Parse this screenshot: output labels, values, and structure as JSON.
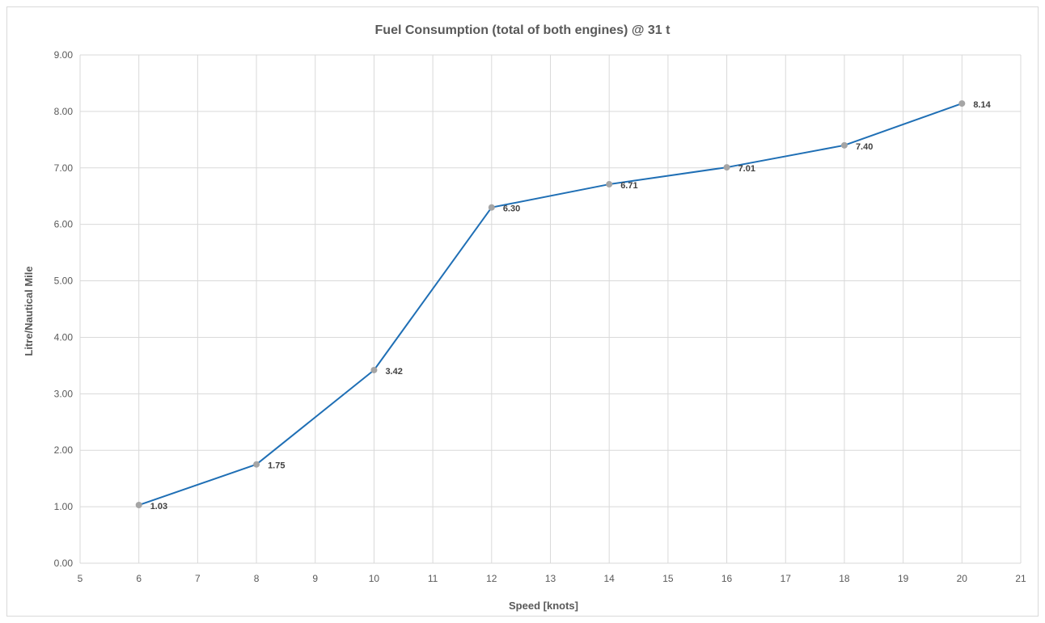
{
  "chart_data": {
    "type": "scatter",
    "title": "Fuel Consumption (total of both engines) @ 31 t",
    "xlabel": "Speed [knots]",
    "ylabel": "Litre/Nautical Mile",
    "xlim": [
      5,
      21
    ],
    "ylim": [
      0,
      9
    ],
    "x_ticks": [
      "5",
      "6",
      "7",
      "8",
      "9",
      "10",
      "11",
      "12",
      "13",
      "14",
      "15",
      "16",
      "17",
      "18",
      "19",
      "20",
      "21"
    ],
    "y_ticks": [
      "0.00",
      "1.00",
      "2.00",
      "3.00",
      "4.00",
      "5.00",
      "6.00",
      "7.00",
      "8.00",
      "9.00"
    ],
    "grid": true,
    "legend": "none",
    "series": [
      {
        "x": [
          6,
          8,
          10,
          12,
          14,
          16,
          18,
          20
        ],
        "y": [
          1.03,
          1.75,
          3.42,
          6.3,
          6.71,
          7.01,
          7.4,
          8.14
        ],
        "labels": [
          "1.03",
          "1.75",
          "3.42",
          "6.30",
          "6.71",
          "7.01",
          "7.40",
          "8.14"
        ],
        "line_color": "#1f6fb5",
        "marker_color": "#a5a5a5"
      }
    ]
  }
}
